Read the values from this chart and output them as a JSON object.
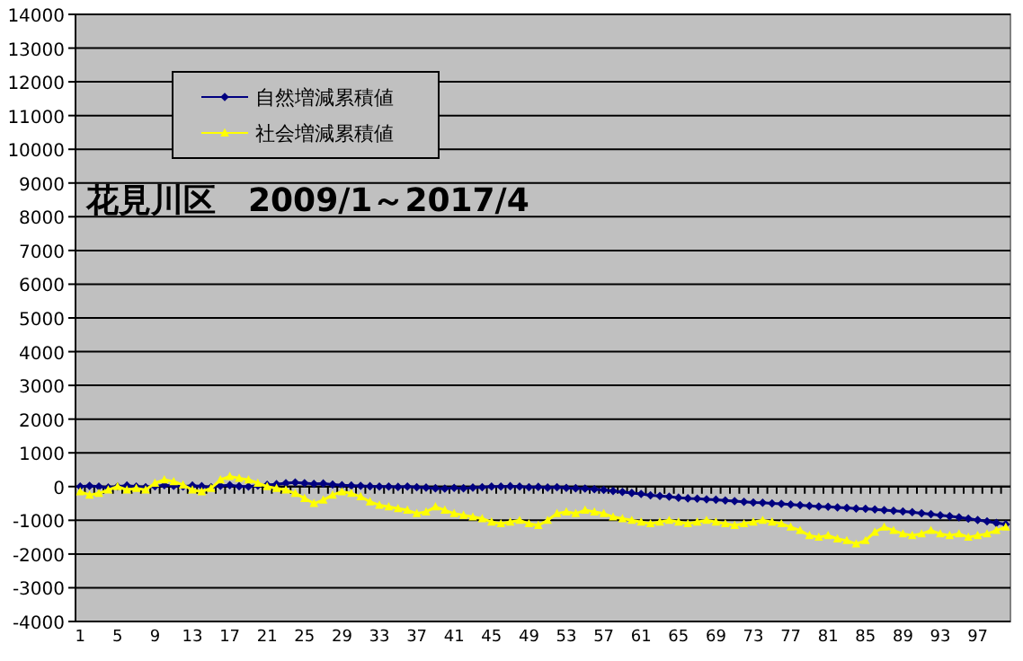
{
  "chart_data": {
    "type": "line",
    "title": "花見川区　2009/1～2017/4",
    "categories": [
      "1",
      null,
      null,
      null,
      "5",
      null,
      null,
      null,
      "9",
      null,
      null,
      null,
      "13",
      null,
      null,
      null,
      "17",
      null,
      null,
      null,
      "21",
      null,
      null,
      null,
      "25",
      null,
      null,
      null,
      "29",
      null,
      null,
      null,
      "33",
      null,
      null,
      null,
      "37",
      null,
      null,
      null,
      "41",
      null,
      null,
      null,
      "45",
      null,
      null,
      null,
      "49",
      null,
      null,
      null,
      "53",
      null,
      null,
      null,
      "57",
      null,
      null,
      null,
      "61",
      null,
      null,
      null,
      "65",
      null,
      null,
      null,
      "69",
      null,
      null,
      null,
      "73",
      null,
      null,
      null,
      "77",
      null,
      null,
      null,
      "81",
      null,
      null,
      null,
      "85",
      null,
      null,
      null,
      "89",
      null,
      null,
      null,
      "93",
      null,
      null,
      null,
      "97",
      null,
      null,
      null
    ],
    "series": [
      {
        "name": "自然増減累積値",
        "color": "#000080",
        "marker": "diamond",
        "values": [
          0,
          20,
          0,
          -30,
          0,
          30,
          0,
          -20,
          10,
          40,
          20,
          0,
          30,
          10,
          -20,
          20,
          40,
          10,
          0,
          30,
          50,
          70,
          100,
          120,
          100,
          80,
          90,
          60,
          40,
          30,
          20,
          10,
          0,
          0,
          -10,
          0,
          -20,
          -30,
          -50,
          -60,
          -40,
          -50,
          -30,
          -20,
          0,
          0,
          10,
          0,
          -20,
          -10,
          -30,
          -20,
          -40,
          -50,
          -60,
          -80,
          -100,
          -130,
          -160,
          -190,
          -220,
          -260,
          -280,
          -300,
          -330,
          -350,
          -360,
          -380,
          -390,
          -410,
          -430,
          -450,
          -470,
          -480,
          -500,
          -510,
          -530,
          -550,
          -570,
          -590,
          -600,
          -620,
          -630,
          -650,
          -660,
          -680,
          -700,
          -720,
          -740,
          -760,
          -790,
          -820,
          -850,
          -880,
          -910,
          -950,
          -990,
          -1030,
          -1080,
          -1120
        ]
      },
      {
        "name": "社会増減累積値",
        "color": "#ffff00",
        "marker": "triangle",
        "values": [
          -150,
          -250,
          -200,
          -100,
          0,
          -100,
          -50,
          -100,
          100,
          200,
          150,
          50,
          -100,
          -150,
          -50,
          200,
          300,
          250,
          200,
          100,
          0,
          -50,
          -100,
          -200,
          -350,
          -500,
          -400,
          -250,
          -150,
          -200,
          -300,
          -450,
          -550,
          -600,
          -650,
          -700,
          -800,
          -750,
          -600,
          -700,
          -800,
          -850,
          -900,
          -950,
          -1050,
          -1100,
          -1050,
          -1000,
          -1100,
          -1150,
          -1000,
          -800,
          -750,
          -800,
          -700,
          -750,
          -800,
          -900,
          -950,
          -1000,
          -1050,
          -1100,
          -1050,
          -1000,
          -1050,
          -1100,
          -1050,
          -1000,
          -1050,
          -1100,
          -1150,
          -1100,
          -1050,
          -1000,
          -1050,
          -1100,
          -1200,
          -1300,
          -1450,
          -1500,
          -1450,
          -1550,
          -1600,
          -1700,
          -1600,
          -1350,
          -1200,
          -1300,
          -1400,
          -1450,
          -1400,
          -1300,
          -1400,
          -1450,
          -1400,
          -1500,
          -1450,
          -1400,
          -1300,
          -1200
        ]
      }
    ],
    "ylim": [
      -4000,
      14000
    ],
    "yticks": [
      -4000,
      -3000,
      -2000,
      -1000,
      0,
      1000,
      2000,
      3000,
      4000,
      5000,
      6000,
      7000,
      8000,
      9000,
      10000,
      11000,
      12000,
      13000,
      14000
    ],
    "grid": "y",
    "legend": "top left",
    "line_style": "solid"
  }
}
